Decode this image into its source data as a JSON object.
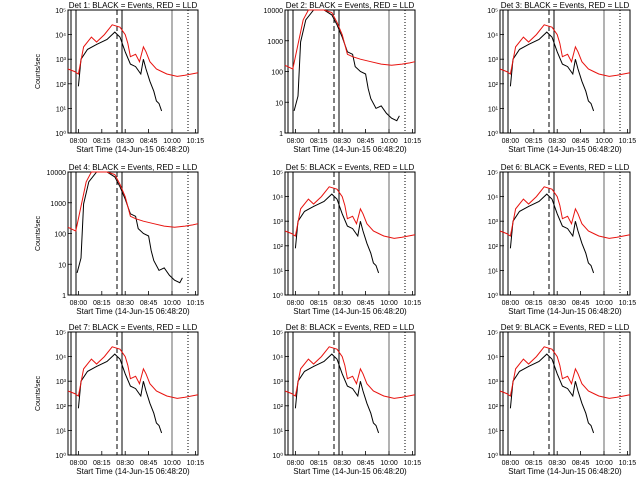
{
  "colors": {
    "events": "#000000",
    "lld": "#e8130f",
    "axes": "#000000"
  },
  "chart_data": [
    {
      "type": "line",
      "title": "Det 1: BLACK = Events, RED = LLD",
      "xlabel": "Start Time (14-Jun-15 06:48:20)",
      "ylabel": "Counts/sec",
      "yscale": "log",
      "ylim": [
        1,
        100000
      ],
      "yticks": [
        "10⁰",
        "10¹",
        "10²",
        "10³",
        "10⁴",
        "10⁵"
      ],
      "xticks": [
        "08:00",
        "08:15",
        "08:30",
        "08:45",
        "10:00",
        "10:15"
      ]
    },
    {
      "type": "line",
      "title": "Det 2: BLACK = Events, RED = LLD",
      "xlabel": "Start Time (14-Jun-15 06:48:20)",
      "ylabel": "",
      "yscale": "log",
      "ylim": [
        1,
        10000
      ],
      "yticks": [
        "1",
        "10",
        "100",
        "1000",
        "10000"
      ],
      "xticks": [
        "08:00",
        "08:15",
        "08:30",
        "08:45",
        "10:00",
        "10:15"
      ]
    },
    {
      "type": "line",
      "title": "Det 3: BLACK = Events, RED = LLD",
      "xlabel": "Start Time (14-Jun-15 06:48:20)",
      "ylabel": "",
      "yscale": "log",
      "ylim": [
        1,
        100000
      ],
      "yticks": [
        "10⁰",
        "10¹",
        "10²",
        "10³",
        "10⁴",
        "10⁵"
      ],
      "xticks": [
        "08:00",
        "08:15",
        "08:30",
        "08:45",
        "10:00",
        "10:15"
      ]
    },
    {
      "type": "line",
      "title": "Det 4: BLACK = Events, RED = LLD",
      "xlabel": "Start Time (14-Jun-15 06:48:20)",
      "ylabel": "Counts/sec",
      "yscale": "log",
      "ylim": [
        1,
        10000
      ],
      "yticks": [
        "1",
        "10",
        "100",
        "1000",
        "10000"
      ],
      "xticks": [
        "08:00",
        "08:15",
        "08:30",
        "08:45",
        "10:00",
        "10:15"
      ]
    },
    {
      "type": "line",
      "title": "Det 5: BLACK = Events, RED = LLD",
      "xlabel": "Start Time (14-Jun-15 06:48:20)",
      "ylabel": "",
      "yscale": "log",
      "ylim": [
        1,
        100000
      ],
      "yticks": [
        "10⁰",
        "10¹",
        "10²",
        "10³",
        "10⁴",
        "10⁵"
      ],
      "xticks": [
        "08:00",
        "08:15",
        "08:30",
        "08:45",
        "10:00",
        "10:15"
      ]
    },
    {
      "type": "line",
      "title": "Det 6: BLACK = Events, RED = LLD",
      "xlabel": "Start Time (14-Jun-15 06:48:20)",
      "ylabel": "",
      "yscale": "log",
      "ylim": [
        1,
        100000
      ],
      "yticks": [
        "10⁰",
        "10¹",
        "10²",
        "10³",
        "10⁴",
        "10⁵"
      ],
      "xticks": [
        "08:00",
        "08:15",
        "08:30",
        "08:45",
        "10:00",
        "10:15"
      ]
    },
    {
      "type": "line",
      "title": "Det 7: BLACK = Events, RED = LLD",
      "xlabel": "Start Time (14-Jun-15 06:48:20)",
      "ylabel": "Counts/sec",
      "yscale": "log",
      "ylim": [
        1,
        100000
      ],
      "yticks": [
        "10⁰",
        "10¹",
        "10²",
        "10³",
        "10⁴",
        "10⁵"
      ],
      "xticks": [
        "08:00",
        "08:15",
        "08:30",
        "08:45",
        "10:00",
        "10:15"
      ]
    },
    {
      "type": "line",
      "title": "Det 8: BLACK = Events, RED = LLD",
      "xlabel": "Start Time (14-Jun-15 06:48:20)",
      "ylabel": "",
      "yscale": "log",
      "ylim": [
        1,
        100000
      ],
      "yticks": [
        "10⁰",
        "10¹",
        "10²",
        "10³",
        "10⁴",
        "10⁵"
      ],
      "xticks": [
        "08:00",
        "08:15",
        "08:30",
        "08:45",
        "10:00",
        "10:15"
      ]
    },
    {
      "type": "line",
      "title": "Det 9: BLACK = Events, RED = LLD",
      "xlabel": "Start Time (14-Jun-15 06:48:20)",
      "ylabel": "",
      "yscale": "log",
      "ylim": [
        1,
        100000
      ],
      "yticks": [
        "10⁰",
        "10¹",
        "10²",
        "10³",
        "10⁴",
        "10⁵"
      ],
      "xticks": [
        "08:00",
        "08:15",
        "08:30",
        "08:45",
        "10:00",
        "10:15"
      ]
    }
  ]
}
